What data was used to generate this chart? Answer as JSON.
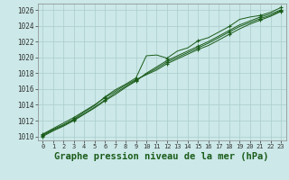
{
  "background_color": "#cce8e8",
  "plot_bg_color": "#cce8e8",
  "grid_color": "#aacccc",
  "line_color": "#1a5c1a",
  "marker_color": "#1a5c1a",
  "title": "Graphe pression niveau de la mer (hPa)",
  "title_fontsize": 7.5,
  "title_bold": true,
  "xlim": [
    -0.5,
    23.5
  ],
  "ylim": [
    1009.5,
    1026.8
  ],
  "yticks": [
    1010,
    1012,
    1014,
    1016,
    1018,
    1020,
    1022,
    1024,
    1026
  ],
  "xticks": [
    0,
    1,
    2,
    3,
    4,
    5,
    6,
    7,
    8,
    9,
    10,
    11,
    12,
    13,
    14,
    15,
    16,
    17,
    18,
    19,
    20,
    21,
    22,
    23
  ],
  "series": [
    [
      1010.2,
      1010.9,
      1011.5,
      1012.2,
      1013.1,
      1013.9,
      1015.0,
      1015.9,
      1016.6,
      1017.4,
      1020.2,
      1020.3,
      1019.9,
      1020.8,
      1021.2,
      1022.1,
      1022.5,
      1023.2,
      1023.9,
      1024.8,
      1025.1,
      1025.3,
      1025.7,
      1026.3
    ],
    [
      1010.0,
      1010.7,
      1011.3,
      1012.0,
      1012.8,
      1013.6,
      1014.5,
      1015.3,
      1016.2,
      1017.0,
      1018.0,
      1018.8,
      1019.6,
      1020.2,
      1020.8,
      1021.4,
      1022.0,
      1022.7,
      1023.4,
      1024.1,
      1024.6,
      1025.1,
      1025.5,
      1026.0
    ],
    [
      1010.1,
      1010.8,
      1011.4,
      1012.1,
      1012.9,
      1013.7,
      1014.6,
      1015.5,
      1016.3,
      1017.1,
      1017.9,
      1018.6,
      1019.4,
      1020.0,
      1020.6,
      1021.2,
      1021.8,
      1022.5,
      1023.2,
      1023.9,
      1024.4,
      1024.9,
      1025.3,
      1025.9
    ],
    [
      1010.3,
      1011.0,
      1011.7,
      1012.4,
      1013.2,
      1014.0,
      1014.9,
      1015.7,
      1016.5,
      1017.2,
      1017.8,
      1018.4,
      1019.2,
      1019.8,
      1020.4,
      1021.0,
      1021.5,
      1022.2,
      1022.9,
      1023.6,
      1024.2,
      1024.7,
      1025.2,
      1025.8
    ]
  ],
  "marker_indices": [
    0,
    3,
    6,
    9,
    12,
    15,
    18,
    21,
    23
  ],
  "marker_style": "+",
  "marker_size": 4,
  "linewidth": 0.7
}
